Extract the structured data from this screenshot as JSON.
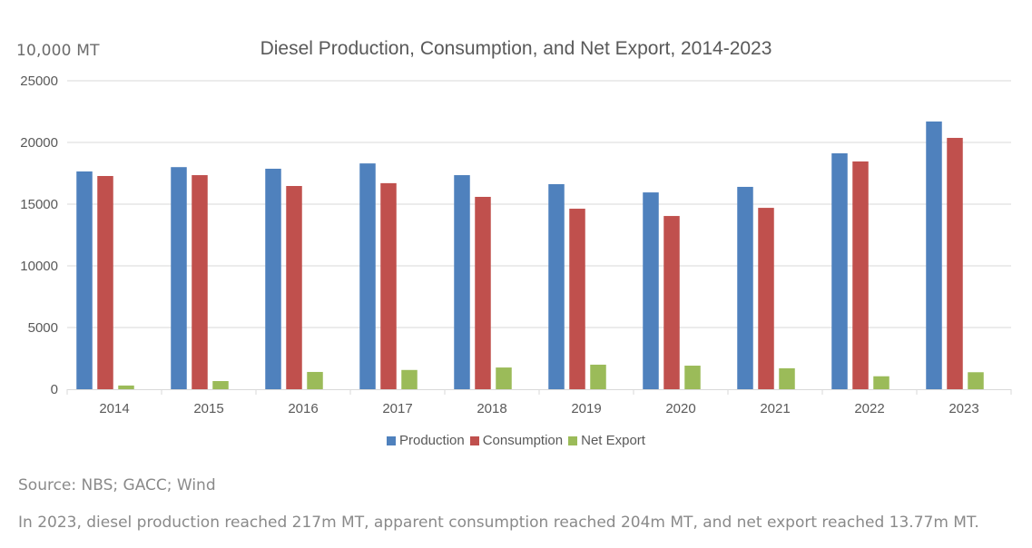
{
  "chart_data": {
    "type": "bar",
    "title": "Diesel Production, Consumption, and Net Export, 2014-2023",
    "ylabel": "10,000 MT",
    "xlabel": "",
    "ylim": [
      0,
      25000
    ],
    "yticks": [
      0,
      5000,
      10000,
      15000,
      20000,
      25000
    ],
    "grid": true,
    "legend_position": "bottom",
    "categories": [
      "2014",
      "2015",
      "2016",
      "2017",
      "2018",
      "2019",
      "2020",
      "2021",
      "2022",
      "2023"
    ],
    "series": [
      {
        "name": "Production",
        "color": "#4f81bd",
        "values": [
          17650,
          18000,
          17870,
          18300,
          17350,
          16620,
          15950,
          16400,
          19120,
          21700
        ]
      },
      {
        "name": "Consumption",
        "color": "#c0504d",
        "values": [
          17280,
          17350,
          16470,
          16700,
          15590,
          14630,
          14040,
          14700,
          18460,
          20370
        ]
      },
      {
        "name": "Net Export",
        "color": "#9bbb59",
        "values": [
          300,
          660,
          1400,
          1560,
          1760,
          1990,
          1910,
          1700,
          1050,
          1377
        ]
      }
    ]
  },
  "footer": {
    "source": "Source: NBS; GACC; Wind",
    "note": "In 2023, diesel production reached 217m MT, apparent consumption reached 204m MT, and net export reached 13.77m MT."
  }
}
